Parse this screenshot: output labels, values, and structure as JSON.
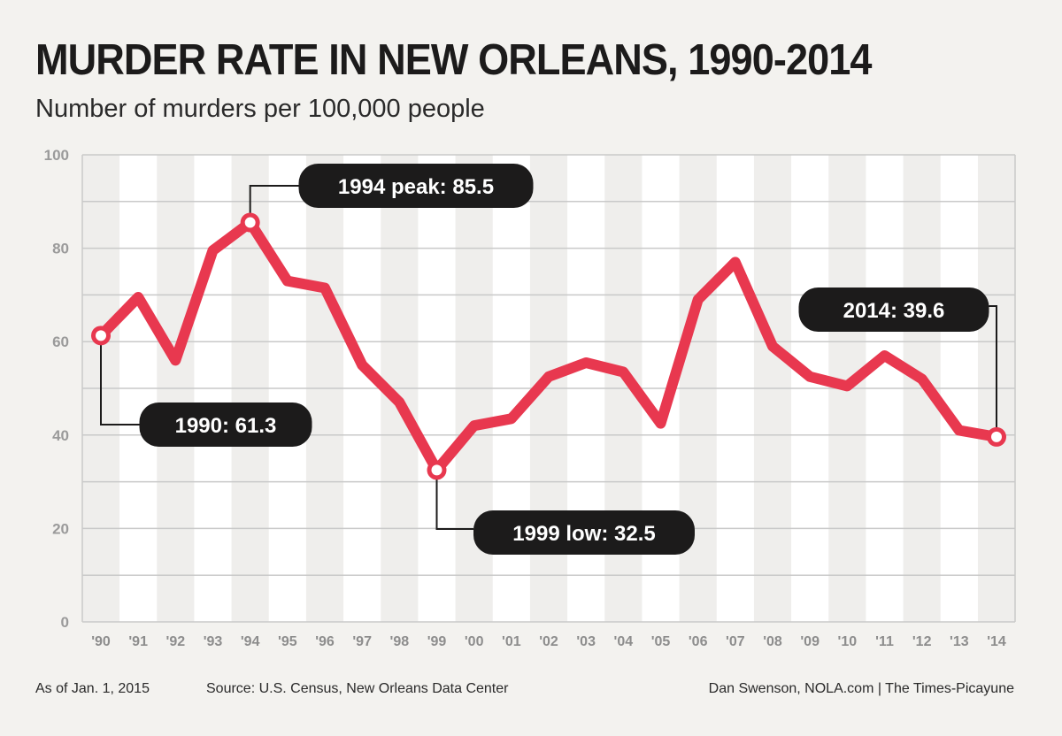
{
  "header": {
    "title": "MURDER RATE IN NEW ORLEANS, 1990-2014",
    "subtitle": "Number of murders per 100,000 people"
  },
  "footer": {
    "date_note": "As of Jan. 1, 2015",
    "source": "Source: U.S. Census, New Orleans Data Center",
    "credit": "Dan Swenson, NOLA.com | The Times-Picayune"
  },
  "colors": {
    "line": "#e8384f",
    "callout_bg": "#1c1b1b",
    "band": "#ffffff",
    "plot_bg": "#efeeec",
    "grid": "#c9c9c9"
  },
  "chart_data": {
    "type": "line",
    "title": "MURDER RATE IN NEW ORLEANS, 1990-2014",
    "subtitle": "Number of murders per 100,000 people",
    "xlabel": "",
    "ylabel": "",
    "ylim": [
      0,
      100
    ],
    "grid": true,
    "y_ticks": [
      0,
      20,
      40,
      60,
      80,
      100
    ],
    "categories": [
      "'90",
      "'91",
      "'92",
      "'93",
      "'94",
      "'95",
      "'96",
      "'97",
      "'98",
      "'99",
      "'00",
      "'01",
      "'02",
      "'03",
      "'04",
      "'05",
      "'06",
      "'07",
      "'08",
      "'09",
      "'10",
      "'11",
      "'12",
      "'13",
      "'14"
    ],
    "series": [
      {
        "name": "Murder rate",
        "values": [
          61.3,
          69.5,
          56.0,
          79.5,
          85.5,
          73.0,
          71.5,
          55.0,
          47.0,
          32.5,
          42.0,
          43.5,
          52.5,
          55.5,
          53.5,
          42.5,
          69.0,
          77.0,
          59.0,
          52.5,
          50.5,
          57.0,
          52.0,
          41.0,
          39.6
        ]
      }
    ],
    "annotations": [
      {
        "index": 0,
        "label": "1990: 61.3"
      },
      {
        "index": 4,
        "label": "1994 peak: 85.5"
      },
      {
        "index": 9,
        "label": "1999 low: 32.5"
      },
      {
        "index": 24,
        "label": "2014: 39.6"
      }
    ]
  }
}
